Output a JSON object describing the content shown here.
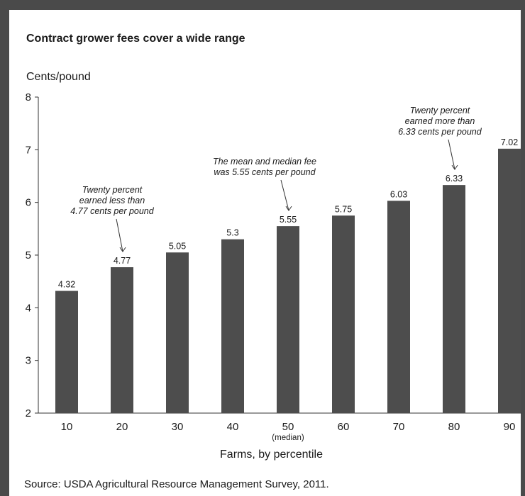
{
  "title": "Contract grower fees cover a wide range",
  "source": "Source: USDA Agricultural Resource Management Survey, 2011.",
  "chart_data": {
    "type": "bar",
    "title": "Contract grower fees cover a wide range",
    "ylabel": "Cents/pound",
    "xlabel": "Farms, by percentile",
    "categories": [
      "10",
      "20",
      "30",
      "40",
      "50",
      "60",
      "70",
      "80",
      "90"
    ],
    "category_sublabels": {
      "50": "(median)"
    },
    "values": [
      4.32,
      4.77,
      5.05,
      5.3,
      5.55,
      5.75,
      6.03,
      6.33,
      7.02
    ],
    "data_labels": [
      "4.32",
      "4.77",
      "5.05",
      "5.3",
      "5.55",
      "5.75",
      "6.03",
      "6.33",
      "7.02"
    ],
    "ylim": [
      2,
      8
    ],
    "yticks": [
      2,
      3,
      4,
      5,
      6,
      7,
      8
    ],
    "grid": false,
    "bar_color": "#4d4d4d",
    "annotations": [
      {
        "category": "20",
        "lines": [
          "Twenty percent",
          "earned less than",
          "4.77 cents per pound"
        ]
      },
      {
        "category": "50",
        "lines": [
          "The mean and median fee",
          "was 5.55 cents per pound"
        ]
      },
      {
        "category": "80",
        "lines": [
          "Twenty percent",
          "earned more than",
          "6.33 cents per pound"
        ]
      }
    ]
  }
}
